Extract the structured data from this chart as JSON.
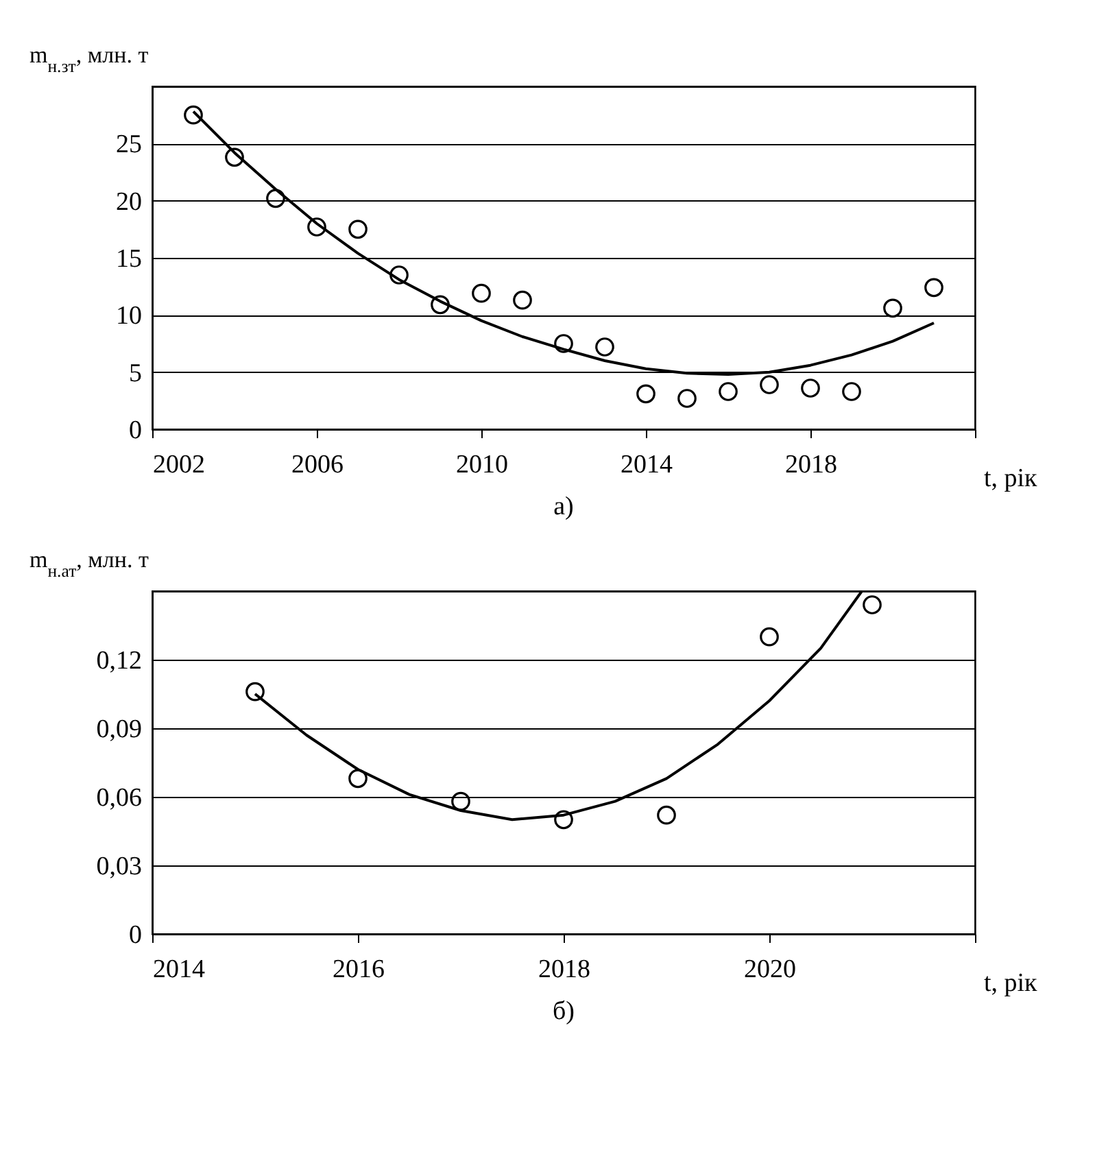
{
  "chart_data": [
    {
      "type": "scatter",
      "xlabel": "t, рік",
      "ylabel": "m$_{н.зт}$, млн. т",
      "annotations": [
        "а)"
      ],
      "grid": "y",
      "xlim": [
        2002,
        2022
      ],
      "xticks": [
        2002,
        2006,
        2010,
        2014,
        2018,
        {
          "value": 2022,
          "label": null
        }
      ],
      "ylim": [
        0,
        30
      ],
      "yticks": [
        0,
        5,
        10,
        15,
        20,
        25,
        {
          "value": 30,
          "label": null
        }
      ],
      "series": [
        {
          "marker": "circle",
          "color": "#000000",
          "x": [
            2003,
            2004,
            2005,
            2006,
            2007,
            2008,
            2009,
            2010,
            2011,
            2012,
            2013,
            2014,
            2015,
            2016,
            2017,
            2018,
            2019,
            2020,
            2021
          ],
          "values": [
            27.5,
            23.8,
            20.2,
            17.7,
            17.5,
            13.5,
            10.9,
            11.9,
            11.3,
            7.5,
            7.2,
            3.1,
            2.7,
            3.3,
            3.9,
            3.6,
            3.3,
            10.6,
            12.4
          ]
        },
        {
          "type": "line",
          "color": "#000000",
          "line_style": "solid",
          "x": [
            2003,
            2004,
            2005,
            2006,
            2007,
            2008,
            2009,
            2010,
            2011,
            2012,
            2013,
            2014,
            2015,
            2016,
            2017,
            2018,
            2019,
            2020,
            2021
          ],
          "values": [
            27.8,
            24.2,
            21.0,
            18.0,
            15.4,
            13.1,
            11.2,
            9.5,
            8.1,
            7.0,
            6.0,
            5.3,
            4.9,
            4.8,
            5.0,
            5.6,
            6.5,
            7.7,
            9.3
          ]
        }
      ]
    },
    {
      "type": "scatter",
      "xlabel": "t, рік",
      "ylabel": "m$_{н.ат}$, млн. т",
      "annotations": [
        "б)"
      ],
      "grid": "y",
      "xlim": [
        2014,
        2022
      ],
      "xticks": [
        2014,
        2016,
        2018,
        2020,
        {
          "value": 2022,
          "label": null
        }
      ],
      "ylim": [
        0,
        0.15
      ],
      "yticks": [
        0,
        {
          "value": 0.03,
          "label": "0,03"
        },
        {
          "value": 0.06,
          "label": "0,06"
        },
        {
          "value": 0.09,
          "label": "0,09"
        },
        {
          "value": 0.12,
          "label": "0,12"
        },
        {
          "value": 0.15,
          "label": null
        }
      ],
      "series": [
        {
          "marker": "circle",
          "color": "#000000",
          "x": [
            2015,
            2016,
            2017,
            2018,
            2019,
            2020,
            2021
          ],
          "values": [
            0.106,
            0.068,
            0.058,
            0.05,
            0.052,
            0.13,
            0.144
          ]
        },
        {
          "type": "line",
          "color": "#000000",
          "line_style": "solid",
          "x": [
            2015,
            2015.5,
            2016,
            2016.5,
            2017,
            2017.5,
            2018,
            2018.5,
            2019,
            2019.5,
            2020,
            2020.5,
            2020.9
          ],
          "values": [
            0.105,
            0.087,
            0.072,
            0.061,
            0.054,
            0.05,
            0.052,
            0.058,
            0.068,
            0.083,
            0.102,
            0.125,
            0.15
          ]
        }
      ]
    }
  ]
}
